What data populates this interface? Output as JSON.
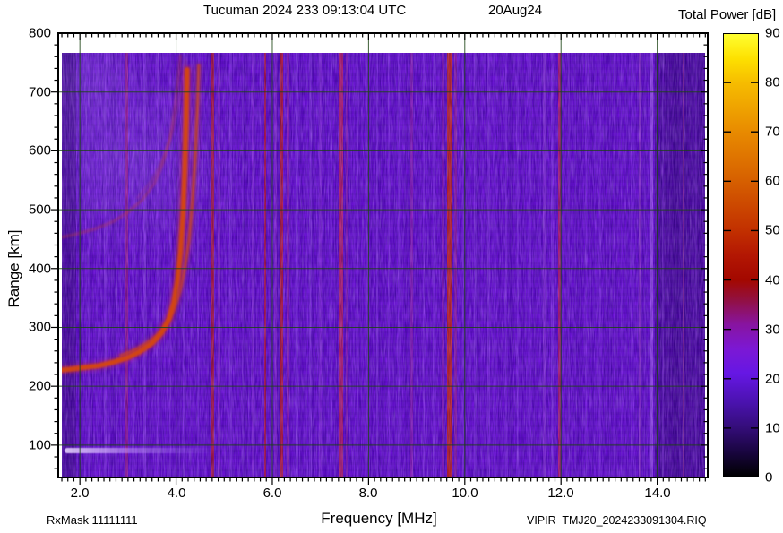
{
  "header": {
    "title": "Tucuman 2024 233 09:13:04 UTC",
    "date": "20Aug24",
    "colorbar_title": "Total Power [dB]"
  },
  "footer": {
    "rxmask": "RxMask 11111111",
    "xaxis_title": "Frequency [MHz]",
    "filename": "VIPIR  TMJ20_2024233091304.RIQ"
  },
  "chart_data": {
    "type": "heatmap",
    "title": "Tucuman 2024 233 09:13:04 UTC  20Aug24",
    "station": "Tucuman",
    "xlabel": "Frequency [MHz]",
    "ylabel": "Range [km]",
    "colorbar_label": "Total Power [dB]",
    "x_axis": {
      "range": [
        1.55,
        15.05
      ],
      "major_ticks": [
        2,
        4,
        6,
        8,
        10,
        12,
        14
      ],
      "tick_labels": [
        "2.0",
        "4.0",
        "6.0",
        "8.0",
        "10.0",
        "12.0",
        "14.0"
      ],
      "minor_step": 0.125
    },
    "y_axis": {
      "range": [
        45,
        800
      ],
      "major_ticks": [
        100,
        200,
        300,
        400,
        500,
        600,
        700,
        800
      ],
      "tick_labels": [
        "100",
        "200",
        "300",
        "400",
        "500",
        "600",
        "700",
        "800"
      ],
      "minor_step": 20
    },
    "colorbar": {
      "range": [
        0,
        90
      ],
      "ticks": [
        0,
        10,
        20,
        30,
        40,
        50,
        60,
        70,
        80,
        90
      ],
      "tick_labels": [
        "0",
        "10",
        "20",
        "30",
        "40",
        "50",
        "60",
        "70",
        "80",
        "90"
      ],
      "stops": [
        {
          "db": 90,
          "color": "#ffff30"
        },
        {
          "db": 85,
          "color": "#fde000"
        },
        {
          "db": 80,
          "color": "#f6bc00"
        },
        {
          "db": 70,
          "color": "#e88a00"
        },
        {
          "db": 60,
          "color": "#d65f00"
        },
        {
          "db": 50,
          "color": "#c23000"
        },
        {
          "db": 45,
          "color": "#b31703"
        },
        {
          "db": 40,
          "color": "#a30800"
        },
        {
          "db": 36,
          "color": "#921040"
        },
        {
          "db": 31,
          "color": "#8814a0"
        },
        {
          "db": 26,
          "color": "#7c18d4"
        },
        {
          "db": 21,
          "color": "#6617e4"
        },
        {
          "db": 15,
          "color": "#4a12ae"
        },
        {
          "db": 10,
          "color": "#340d79"
        },
        {
          "db": 5,
          "color": "#190540"
        },
        {
          "db": 0,
          "color": "#000000"
        }
      ]
    },
    "background_power_db": 21,
    "background_color": "#6e11da",
    "grid": {
      "color": "#1c4414",
      "x_step_mhz": 2,
      "y_step_km": 100
    },
    "data_extent": {
      "f_min_mhz": 1.62,
      "f_max_mhz": 14.95,
      "range_min_km": 47,
      "range_max_km": 768
    },
    "noise_regions": [
      {
        "f_start_mhz": 1.55,
        "f_end_mhz": 1.92,
        "effect": "darker"
      },
      {
        "f_start_mhz": 13.95,
        "f_end_mhz": 15.05,
        "effect": "darker"
      }
    ],
    "spread_region": {
      "f_range_mhz": [
        1.6,
        4.4
      ],
      "range_km": [
        300,
        768
      ]
    },
    "rfi_bands": [
      {
        "f_mhz": 2.2,
        "w": 3,
        "color": "#8f36ee",
        "opacity": 0.45
      },
      {
        "f_mhz": 2.52,
        "w": 3,
        "color": "#9440f2",
        "opacity": 0.5
      },
      {
        "f_mhz": 2.76,
        "w": 2,
        "color": "#9440f2",
        "opacity": 0.4
      },
      {
        "f_mhz": 2.97,
        "w": 3,
        "color": "#c02878",
        "opacity": 0.55
      },
      {
        "f_mhz": 3.12,
        "w": 2,
        "color": "#9440f2",
        "opacity": 0.35
      },
      {
        "f_mhz": 3.34,
        "w": 3,
        "color": "#9a46f5",
        "opacity": 0.5
      },
      {
        "f_mhz": 3.62,
        "w": 2,
        "color": "#9a46f5",
        "opacity": 0.4
      },
      {
        "f_mhz": 3.88,
        "w": 2,
        "color": "#9440f2",
        "opacity": 0.35
      },
      {
        "f_mhz": 4.16,
        "w": 3,
        "color": "#9440f2",
        "opacity": 0.45
      },
      {
        "f_mhz": 4.46,
        "w": 2,
        "color": "#9440f2",
        "opacity": 0.4
      },
      {
        "f_mhz": 4.76,
        "w": 3,
        "color": "#cc2014",
        "opacity": 0.7
      },
      {
        "f_mhz": 4.9,
        "w": 3,
        "color": "#a83ad8",
        "opacity": 0.45
      },
      {
        "f_mhz": 5.14,
        "w": 3,
        "color": "#9440f2",
        "opacity": 0.45
      },
      {
        "f_mhz": 5.38,
        "w": 2,
        "color": "#9440f2",
        "opacity": 0.35
      },
      {
        "f_mhz": 5.6,
        "w": 3,
        "color": "#a040e8",
        "opacity": 0.45
      },
      {
        "f_mhz": 5.85,
        "w": 2,
        "color": "#d01818",
        "opacity": 0.7
      },
      {
        "f_mhz": 6.07,
        "w": 3,
        "color": "#a83ad8",
        "opacity": 0.45
      },
      {
        "f_mhz": 6.2,
        "w": 3,
        "color": "#d42012",
        "opacity": 0.75
      },
      {
        "f_mhz": 6.33,
        "w": 3,
        "color": "#b42ba8",
        "opacity": 0.5
      },
      {
        "f_mhz": 6.52,
        "w": 3,
        "color": "#9440f2",
        "opacity": 0.4
      },
      {
        "f_mhz": 6.8,
        "w": 3,
        "color": "#9440f2",
        "opacity": 0.45
      },
      {
        "f_mhz": 7.0,
        "w": 3,
        "color": "#a040e8",
        "opacity": 0.4
      },
      {
        "f_mhz": 7.22,
        "w": 2,
        "color": "#9440f2",
        "opacity": 0.35
      },
      {
        "f_mhz": 7.43,
        "w": 5,
        "color": "#cc2458",
        "opacity": 0.8
      },
      {
        "f_mhz": 7.56,
        "w": 3,
        "color": "#b42ba8",
        "opacity": 0.45
      },
      {
        "f_mhz": 7.76,
        "w": 2,
        "color": "#9440f2",
        "opacity": 0.4
      },
      {
        "f_mhz": 7.98,
        "w": 3,
        "color": "#9440f2",
        "opacity": 0.35
      },
      {
        "f_mhz": 8.18,
        "w": 2,
        "color": "#9440f2",
        "opacity": 0.4
      },
      {
        "f_mhz": 8.42,
        "w": 2,
        "color": "#9440f2",
        "opacity": 0.3
      },
      {
        "f_mhz": 8.64,
        "w": 3,
        "color": "#9440f2",
        "opacity": 0.4
      },
      {
        "f_mhz": 8.9,
        "w": 3,
        "color": "#b42ba8",
        "opacity": 0.45
      },
      {
        "f_mhz": 9.14,
        "w": 2,
        "color": "#9440f2",
        "opacity": 0.35
      },
      {
        "f_mhz": 9.36,
        "w": 2,
        "color": "#9440f2",
        "opacity": 0.4
      },
      {
        "f_mhz": 9.55,
        "w": 3,
        "color": "#b02ab0",
        "opacity": 0.45
      },
      {
        "f_mhz": 9.67,
        "w": 5,
        "color": "#d82a0a",
        "opacity": 0.85
      },
      {
        "f_mhz": 9.8,
        "w": 3,
        "color": "#b42b90",
        "opacity": 0.5
      },
      {
        "f_mhz": 9.96,
        "w": 2,
        "color": "#9440f2",
        "opacity": 0.35
      },
      {
        "f_mhz": 10.22,
        "w": 3,
        "color": "#9440f2",
        "opacity": 0.4
      },
      {
        "f_mhz": 10.5,
        "w": 3,
        "color": "#9440f2",
        "opacity": 0.45
      },
      {
        "f_mhz": 10.86,
        "w": 2,
        "color": "#9440f2",
        "opacity": 0.35
      },
      {
        "f_mhz": 11.1,
        "w": 2,
        "color": "#9440f2",
        "opacity": 0.4
      },
      {
        "f_mhz": 11.36,
        "w": 2,
        "color": "#9440f2",
        "opacity": 0.3
      },
      {
        "f_mhz": 11.66,
        "w": 3,
        "color": "#a346f0",
        "opacity": 0.5
      },
      {
        "f_mhz": 11.81,
        "w": 3,
        "color": "#9440f2",
        "opacity": 0.4
      },
      {
        "f_mhz": 11.97,
        "w": 3,
        "color": "#d0245a",
        "opacity": 0.75
      },
      {
        "f_mhz": 12.16,
        "w": 2,
        "color": "#9440f2",
        "opacity": 0.35
      },
      {
        "f_mhz": 12.52,
        "w": 2,
        "color": "#9440f2",
        "opacity": 0.3
      },
      {
        "f_mhz": 12.82,
        "w": 2,
        "color": "#9440f2",
        "opacity": 0.35
      },
      {
        "f_mhz": 13.12,
        "w": 2,
        "color": "#9440f2",
        "opacity": 0.3
      },
      {
        "f_mhz": 13.46,
        "w": 2,
        "color": "#9440f2",
        "opacity": 0.35
      },
      {
        "f_mhz": 13.64,
        "w": 3,
        "color": "#b856d8",
        "opacity": 0.45
      },
      {
        "f_mhz": 13.87,
        "w": 4,
        "color": "#a85cf8",
        "opacity": 0.75
      },
      {
        "f_mhz": 14.12,
        "w": 2,
        "color": "#9440f2",
        "opacity": 0.35
      },
      {
        "f_mhz": 14.55,
        "w": 2,
        "color": "#c04890",
        "opacity": 0.4
      },
      {
        "f_mhz": 14.8,
        "w": 2,
        "color": "#8a3ae0",
        "opacity": 0.3
      }
    ],
    "echo_traces": {
      "o_mode_first_hop": {
        "color": "#d6470a",
        "glow_color": "#b5255f",
        "points_mhz_km": [
          [
            1.56,
            227
          ],
          [
            1.8,
            229
          ],
          [
            2.1,
            232
          ],
          [
            2.4,
            235
          ],
          [
            2.7,
            241
          ],
          [
            3.0,
            249
          ],
          [
            3.25,
            259
          ],
          [
            3.5,
            273
          ],
          [
            3.7,
            291
          ],
          [
            3.85,
            314
          ],
          [
            3.95,
            342
          ],
          [
            4.03,
            380
          ],
          [
            4.09,
            428
          ],
          [
            4.14,
            490
          ],
          [
            4.18,
            565
          ],
          [
            4.21,
            655
          ],
          [
            4.23,
            738
          ]
        ]
      },
      "x_mode_first_hop": {
        "color": "#cc4a12",
        "glow_color": "#a8305f",
        "points_mhz_km": [
          [
            2.85,
            252
          ],
          [
            3.1,
            260
          ],
          [
            3.35,
            271
          ],
          [
            3.6,
            286
          ],
          [
            3.8,
            305
          ],
          [
            3.95,
            330
          ],
          [
            4.08,
            362
          ],
          [
            4.18,
            400
          ],
          [
            4.27,
            450
          ],
          [
            4.34,
            515
          ],
          [
            4.4,
            595
          ],
          [
            4.45,
            690
          ],
          [
            4.47,
            745
          ]
        ]
      },
      "o_mode_second_hop": {
        "color": "#c23a30",
        "points_mhz_km": [
          [
            1.56,
            452
          ],
          [
            1.9,
            458
          ],
          [
            2.3,
            467
          ],
          [
            2.7,
            480
          ],
          [
            3.0,
            496
          ],
          [
            3.3,
            517
          ],
          [
            3.55,
            545
          ],
          [
            3.72,
            578
          ],
          [
            3.87,
            620
          ],
          [
            3.97,
            670
          ],
          [
            4.05,
            728
          ],
          [
            4.09,
            762
          ]
        ]
      },
      "x_mode_second_hop": {
        "color": "#b83a50",
        "points_mhz_km": [
          [
            3.2,
            520
          ],
          [
            3.5,
            550
          ],
          [
            3.75,
            590
          ],
          [
            3.95,
            640
          ],
          [
            4.1,
            700
          ],
          [
            4.2,
            755
          ]
        ]
      },
      "e_layer_echo": {
        "range_km": 90,
        "f_start_mhz": 1.68,
        "f_end_mhz": 4.9,
        "color": "#dcc4fa"
      }
    }
  }
}
